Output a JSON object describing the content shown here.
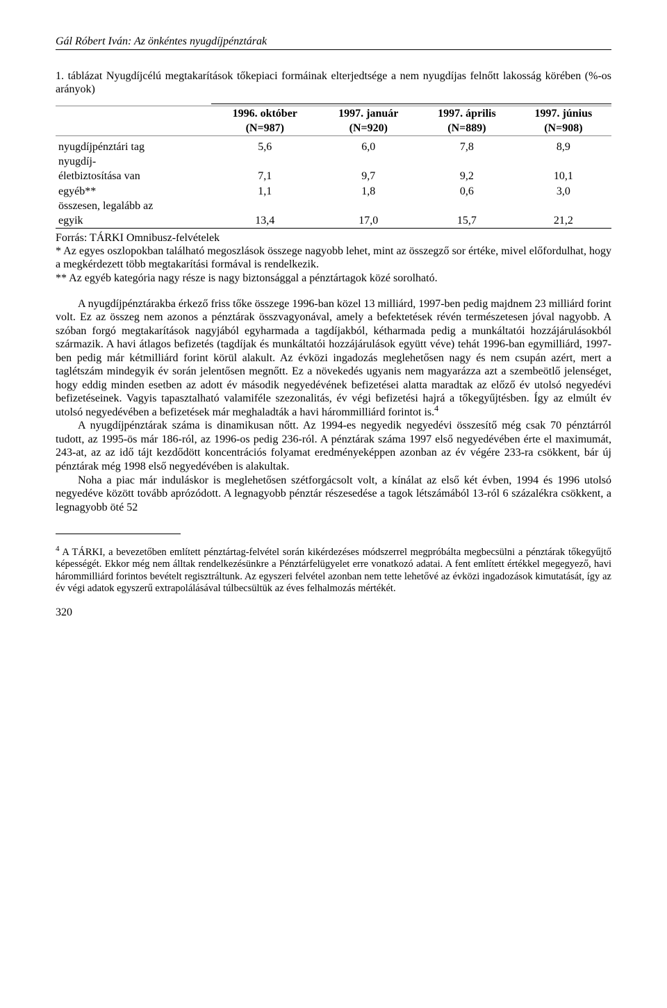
{
  "header": {
    "author_title": "Gál Róbert Iván: Az önkéntes nyugdíjpénztárak"
  },
  "table": {
    "title": "1. táblázat Nyugdíjcélú megtakarítások tőkepiaci formáinak elterjedtsége  a nem nyugdíjas felnőtt lakosság körében (%-os arányok)",
    "columns_line1": [
      "1996. október",
      "1997. január",
      "1997. április",
      "1997. június"
    ],
    "columns_line2": [
      "(N=987)",
      "(N=920)",
      "(N=889)",
      "(N=908)"
    ],
    "rows": [
      {
        "label": "nyugdíjpénztári tag",
        "cells": [
          "5,6",
          "6,0",
          "7,8",
          "8,9"
        ]
      },
      {
        "label": "nyugdíj-",
        "cells": [
          "",
          "",
          "",
          ""
        ]
      },
      {
        "label": "életbiztosítása van",
        "cells": [
          "7,1",
          "9,7",
          "9,2",
          "10,1"
        ]
      },
      {
        "label": "egyéb**",
        "cells": [
          "1,1",
          "1,8",
          "0,6",
          "3,0"
        ]
      },
      {
        "label": "összesen, legalább az",
        "cells": [
          "",
          "",
          "",
          ""
        ]
      },
      {
        "label": "egyik",
        "cells": [
          "13,4",
          "17,0",
          "15,7",
          "21,2"
        ]
      }
    ],
    "source": "Forrás: TÁRKI Omnibusz-felvételek",
    "note1": "* Az egyes oszlopokban található megoszlások összege nagyobb lehet, mint az összegző sor értéke, mivel előfordulhat, hogy a megkérdezett több megtakarítási formával is rendelkezik.",
    "note2": "** Az egyéb kategória nagy része is nagy biztonsággal a pénztártagok közé sorolható."
  },
  "body": {
    "p1a": "A nyugdíjpénztárakba érkező friss tőke összege 1996-ban közel 13 milliárd, 1997-ben pedig majdnem 23 milliárd forint volt. Ez az összeg nem azonos a pénztárak összvagyonával, amely a befektetések révén természetesen jóval nagyobb. A szóban forgó megtakarítások nagyjából egyharmada a tagdíjakból, kétharmada pedig a munkáltatói hozzájárulásokból származik. A havi átlagos befizetés (tagdíjak és munkáltatói hozzájárulások együtt véve) tehát 1996-ban egymilliárd, 1997-ben pedig már kétmilliárd forint körül alakult. Az évközi ingadozás meglehetősen nagy és nem csupán azért, mert a taglétszám mindegyik év során jelentősen megnőtt. Ez a növekedés ugyanis nem magyarázza azt a szembeötlő jelenséget, hogy eddig minden esetben az adott év második negyedévének befizetései alatta maradtak az előző év utolsó negyedévi befizetéseinek. Vagyis tapasztalható valamiféle szezonalitás, év végi befizetési hajrá a tőkegyűjtésben. Így az elmúlt év utolsó negyedévében a befizetések már meghaladták a havi hárommilliárd forintot is.",
    "p1b": "A nyugdíjpénztárak száma is dinamikusan nőtt. Az 1994-es negyedik negyedévi összesítő még csak 70 pénztárról tudott, az 1995-ös már 186-ról, az 1996-os pedig 236-ról. A pénztárak száma 1997 első negyedévében érte el maximumát, 243-at, az az idő tájt kezdődött koncentrációs folyamat eredményeképpen azonban az év végére 233-ra csökkent, bár új pénztárak még 1998 első negyedévében is alakultak.",
    "p1c": "Noha a piac már induláskor is meglehetősen szétforgácsolt volt, a kínálat az első két évben, 1994 és 1996 utolsó negyedéve között tovább aprózódott. A legnagyobb pénztár részesedése a tagok létszámából 13-ról 6 százalékra csökkent, a legnagyobb öté 52",
    "footnote_marker": "4"
  },
  "footnote": {
    "marker": "4",
    "text": " A TÁRKI, a bevezetőben említett pénztártag-felvétel során kikérdezéses módszerrel megpróbálta megbecsülni a pénztárak tőkegyűjtő képességét. Ekkor még nem álltak rendelkezésünkre a Pénztárfelügyelet erre vonatkozó adatai. A fent említett értékkel megegyező, havi hárommilliárd forintos bevételt regisztráltunk. Az egyszeri felvétel azonban nem tette lehetővé az évközi ingadozások kimutatását, így az év végi adatok egyszerű extrapolálásával túlbecsültük az éves felhalmozás mértékét."
  },
  "page_number": "320"
}
